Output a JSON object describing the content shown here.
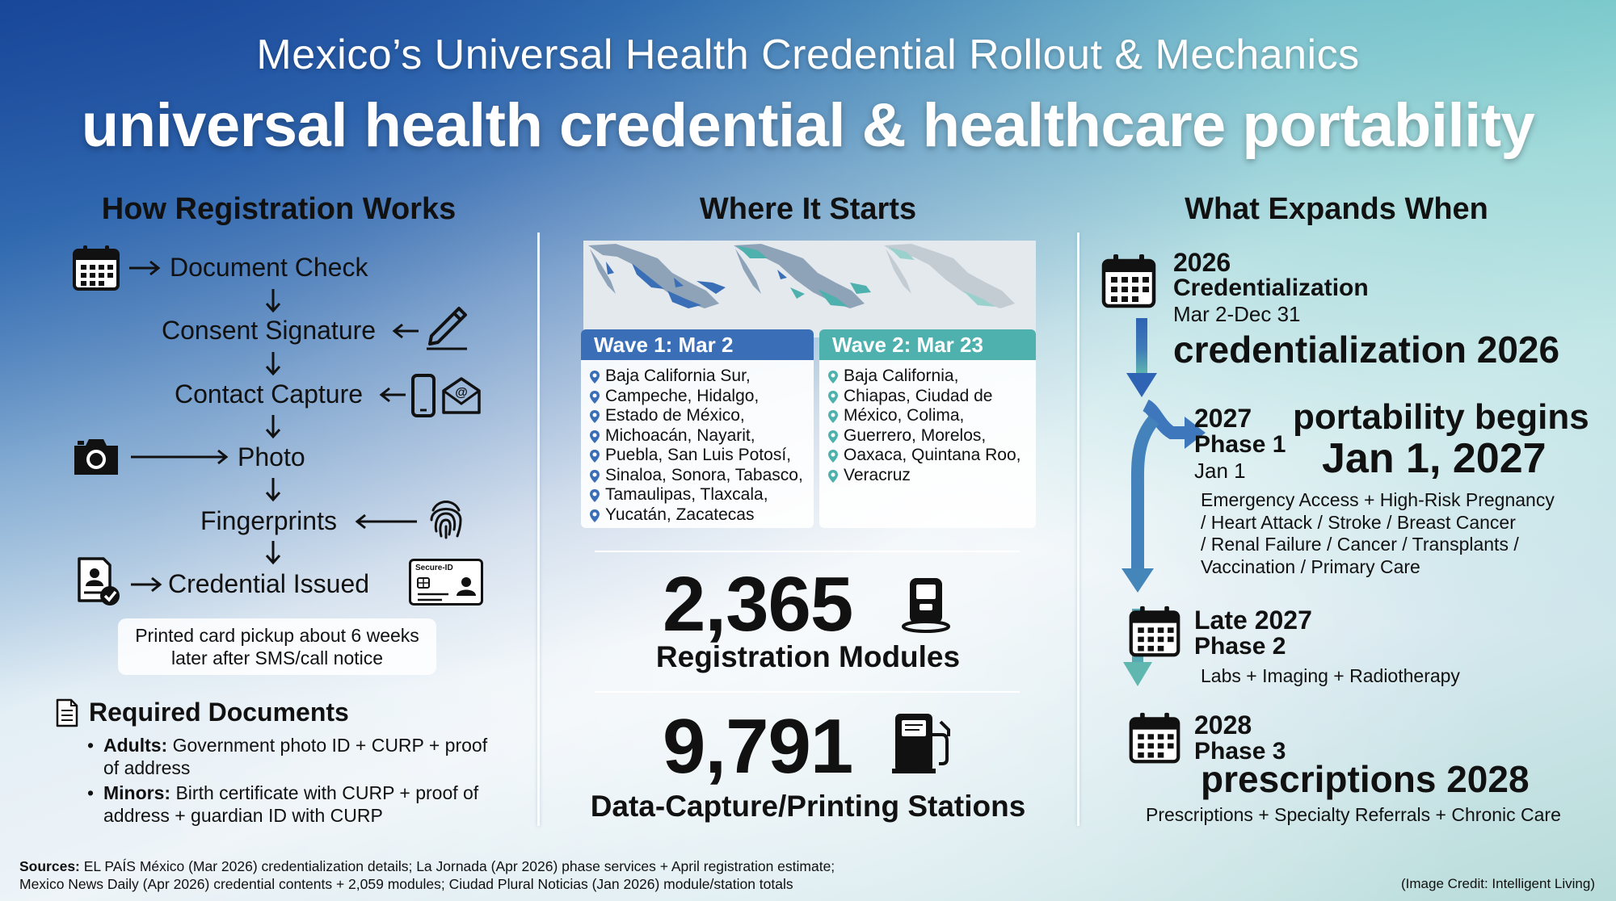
{
  "header": {
    "subtitle": "Mexico’s Universal Health Credential Rollout & Mechanics",
    "title": "universal health credential & healthcare portability"
  },
  "registration": {
    "title": "How Registration Works",
    "steps": [
      "Document Check",
      "Consent Signature",
      "Contact Capture",
      "Photo",
      "Fingerprints",
      "Credential Issued"
    ],
    "card_label": "Secure-ID",
    "pickup_note": "Printed card pickup about 6 weeks later after SMS/call notice",
    "required": {
      "title": "Required Documents",
      "items": [
        {
          "label": "Adults:",
          "text": " Government photo ID + CURP + proof of address"
        },
        {
          "label": "Minors:",
          "text": " Birth certificate with CURP + proof of address + guardian ID with CURP"
        }
      ]
    }
  },
  "start": {
    "title": "Where It Starts",
    "wave1": {
      "title": "Wave 1: Mar 2",
      "color": "#3a6fb8",
      "lines": [
        "Baja California Sur,",
        "Campeche, Hidalgo,",
        "Estado de México,",
        "Michoacán, Nayarit,",
        "Puebla, San Luis Potosí,",
        "Sinaloa, Sonora, Tabasco,",
        "Tamaulipas, Tlaxcala,",
        "Yucatán, Zacatecas"
      ]
    },
    "wave2": {
      "title": "Wave 2: Mar 23",
      "color": "#4fb1ad",
      "lines": [
        "Baja California,",
        "Chiapas, Ciudad de",
        "México, Colima,",
        "Guerrero, Morelos,",
        "Oaxaca, Quintana Roo,",
        "Veracruz"
      ]
    },
    "modules": {
      "value": "2,365",
      "label": "Registration Modules"
    },
    "stations": {
      "value": "9,791",
      "label": "Data-Capture/Printing Stations"
    }
  },
  "expands": {
    "title": "What Expands When",
    "p2026": {
      "year": "2026",
      "name": "Credentialization",
      "dates": "Mar 2-Dec 31",
      "big": "credentialization 2026"
    },
    "p2027": {
      "year": "2027",
      "name": "Phase 1",
      "date": "Jan 1",
      "big1": "portability begins",
      "big2": "Jan 1, 2027",
      "desc": [
        "Emergency Access + High-Risk Pregnancy",
        "/ Heart Attack / Stroke / Breast Cancer",
        "/ Renal Failure / Cancer / Transplants /",
        "Vaccination / Primary Care"
      ]
    },
    "late2027": {
      "year": "Late 2027",
      "name": "Phase 2",
      "desc": "Labs + Imaging + Radiotherapy"
    },
    "p2028": {
      "year": "2028",
      "name": "Phase 3",
      "big": "prescriptions 2028",
      "desc": "Prescriptions + Specialty Referrals + Chronic Care"
    }
  },
  "footer": {
    "sources_label": "Sources:",
    "line1": " EL PAÍS México (Mar 2026) credentialization details; La Jornada (Apr 2026) phase services + April registration estimate;",
    "line2": "Mexico News Daily (Apr 2026) credential contents + 2,059 modules; Ciudad Plural Noticias (Jan 2026) module/station totals",
    "credit": "(Image Credit: Intelligent Living)"
  },
  "icons": [
    "calendar-icon",
    "pen-icon",
    "phone-icon",
    "email-icon",
    "camera-icon",
    "fingerprint-icon",
    "document-check-icon",
    "id-card-icon",
    "map-pin-icon",
    "kiosk-icon",
    "printer-station-icon"
  ]
}
